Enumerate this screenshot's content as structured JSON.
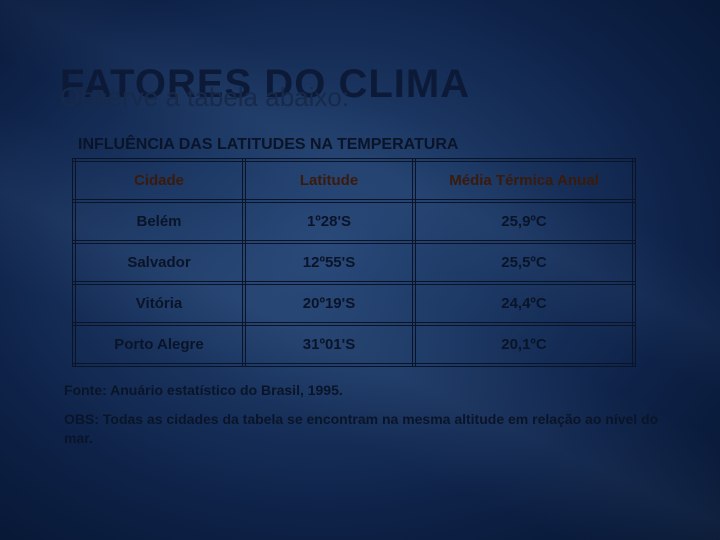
{
  "title": {
    "main": "FATORES DO CLIMA",
    "sub": "Observe a tabela abaixo:"
  },
  "table": {
    "caption": "INFLUÊNCIA DAS LATITUDES NA TEMPERATURA",
    "columns": [
      "Cidade",
      "Latitude",
      "Média Térmica Anual"
    ],
    "rows": [
      [
        "Belém",
        "1º28'S",
        "25,9ºC"
      ],
      [
        "Salvador",
        "12º55'S",
        "25,5ºC"
      ],
      [
        "Vitória",
        "20º19'S",
        "24,4ºC"
      ],
      [
        "Porto Alegre",
        "31º01'S",
        "20,1ºC"
      ]
    ]
  },
  "footnotes": [
    "Fonte: Anuário estatístico do Brasil, 1995.",
    "OBS: Todas as cidades da tabela se encontram na mesma altitude em relação ao nível do mar."
  ],
  "style": {
    "header_text_color": "#3a1a0a",
    "body_text_color": "#0a1428",
    "border_color": "#0a1428"
  }
}
